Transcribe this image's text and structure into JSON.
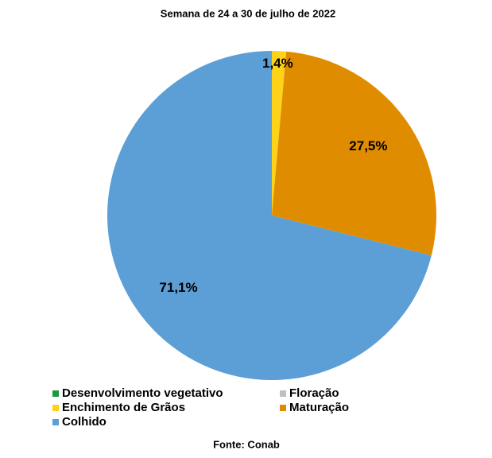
{
  "chart_data": {
    "type": "pie",
    "title": "Semana de 24 a 30 de julho de 2022",
    "categories": [
      "Desenvolvimento vegetativo",
      "Floração",
      "Enchimento de Grãos",
      "Maturação",
      "Colhido"
    ],
    "values": [
      0,
      0,
      1.4,
      27.5,
      71.1
    ],
    "value_labels": [
      null,
      null,
      "1,4%",
      "27,5%",
      "71,1%"
    ],
    "colors": [
      "#1a9a3c",
      "#bfbfbf",
      "#ffd21a",
      "#e08c00",
      "#5b9fd6"
    ],
    "source": "Fonte: Conab"
  }
}
